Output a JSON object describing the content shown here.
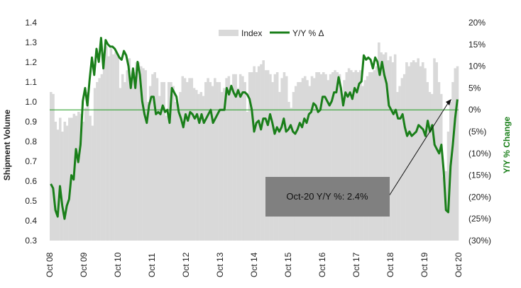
{
  "chart_data": {
    "type": "bar+line",
    "left_axis": {
      "label": "Shipment Volume",
      "ylim": [
        0.3,
        1.4
      ],
      "ticks": [
        "0.3",
        "0.4",
        "0.5",
        "0.6",
        "0.7",
        "0.8",
        "0.9",
        "1.0",
        "1.1",
        "1.2",
        "1.3",
        "1.4"
      ],
      "tick_values": [
        0.3,
        0.4,
        0.5,
        0.6,
        0.7,
        0.8,
        0.9,
        1.0,
        1.1,
        1.2,
        1.3,
        1.4
      ]
    },
    "right_axis": {
      "label": "Y/Y % Change",
      "ylim": [
        -30,
        20
      ],
      "ticks": [
        "20%",
        "15%",
        "10%",
        "5%",
        "0%",
        "(5%)",
        "(10%)",
        "(15%)",
        "(20%)",
        "(25%)",
        "(30%)"
      ],
      "tick_values": [
        20,
        15,
        10,
        5,
        0,
        -5,
        -10,
        -15,
        -20,
        -25,
        -30
      ],
      "color": "#1a7f1a"
    },
    "x_ticks": [
      "Oct 08",
      "Oct 09",
      "Oct 10",
      "Oct 11",
      "Oct 12",
      "Oct 13",
      "Oct 14",
      "Oct 15",
      "Oct 16",
      "Oct 17",
      "Oct 18",
      "Oct 19",
      "Oct 20"
    ],
    "legend": [
      {
        "name": "Index",
        "color": "#d9d9d9",
        "kind": "bar"
      },
      {
        "name": "Y/Y % Δ",
        "color": "#1a7f1a",
        "kind": "line"
      }
    ],
    "zero_line": {
      "value": 0,
      "color": "#1a9a1a"
    },
    "series": [
      {
        "name": "Index",
        "axis": "left",
        "values": [
          1.05,
          1.04,
          0.9,
          0.86,
          0.92,
          0.85,
          0.9,
          0.88,
          0.92,
          0.92,
          0.94,
          0.93,
          0.95,
          0.94,
          0.9,
          0.97,
          1.05,
          0.93,
          0.88,
          1.07,
          1.1,
          1.12,
          1.14,
          1.25,
          1.28,
          1.23,
          1.27,
          1.24,
          1.25,
          1.24,
          1.07,
          1.14,
          1.1,
          1.16,
          1.22,
          1.12,
          1.15,
          1.2,
          1.2,
          1.18,
          1.17,
          1.16,
          1.0,
          1.08,
          1.14,
          1.15,
          1.12,
          1.03,
          1.1,
          1.1,
          0.93,
          1.1,
          1.1,
          1.08,
          1.0,
          0.99,
          1.05,
          1.13,
          1.12,
          1.1,
          1.12,
          1.12,
          1.07,
          1.06,
          1.04,
          1.05,
          1.03,
          1.1,
          1.12,
          1.1,
          1.08,
          1.12,
          1.1,
          1.1,
          1.05,
          1.07,
          1.12,
          1.13,
          1.06,
          1.14,
          1.14,
          1.07,
          1.14,
          1.13,
          1.1,
          0.95,
          1.15,
          1.15,
          1.18,
          1.15,
          1.18,
          1.19,
          1.21,
          1.16,
          1.16,
          1.14,
          1.1,
          1.14,
          1.15,
          1.05,
          1.12,
          1.15,
          1.13,
          1.0,
          0.97,
          1.05,
          1.08,
          1.1,
          1.1,
          1.12,
          1.13,
          1.11,
          1.08,
          1.13,
          1.12,
          1.15,
          1.15,
          1.14,
          1.15,
          1.14,
          1.11,
          1.14,
          1.15,
          1.16,
          1.15,
          1.14,
          1.03,
          1.11,
          1.15,
          1.17,
          1.16,
          1.15,
          1.16,
          1.15,
          1.16,
          1.08,
          1.11,
          1.13,
          1.15,
          1.15,
          1.16,
          1.18,
          1.3,
          1.25,
          1.24,
          1.25,
          1.21,
          1.23,
          1.2,
          1.24,
          1.05,
          1.08,
          1.12,
          1.14,
          1.2,
          1.18,
          1.2,
          1.21,
          1.2,
          1.22,
          1.18,
          1.2,
          1.17,
          1.1,
          1.05,
          1.04,
          1.22,
          1.2,
          1.1,
          1.04,
          0.62,
          0.65,
          0.85,
          1.0,
          1.1,
          1.17,
          1.18
        ],
        "color": "#d9d9d9"
      },
      {
        "name": "Y/Y % Δ",
        "axis": "right",
        "values": [
          -17,
          -18,
          -23,
          -24.5,
          -17.5,
          -22,
          -25,
          -22,
          -20.5,
          -15,
          -16,
          -9,
          -12,
          -8,
          2,
          5,
          1,
          7,
          12,
          8,
          14,
          11,
          16.5,
          9.5,
          16,
          15,
          14.5,
          14.5,
          14,
          13,
          12,
          11.5,
          13.5,
          12.5,
          10,
          5,
          9.5,
          5,
          11,
          8,
          2,
          -1,
          -3,
          1,
          3,
          3,
          -1,
          -0.5,
          -1,
          1,
          -0.5,
          0,
          -3,
          5,
          4,
          3,
          -0.5,
          -2,
          -4,
          -1,
          -2.5,
          -0.5,
          -1,
          -2,
          -1,
          -3,
          -1,
          -3,
          -2,
          -1,
          0,
          -3,
          -2,
          -1,
          0,
          0,
          0,
          5,
          3.5,
          5.5,
          4,
          3,
          4.5,
          3,
          4,
          4,
          3.5,
          2.5,
          0,
          -5,
          -3,
          -2.5,
          -4.5,
          -2,
          -2,
          -3.5,
          -1,
          -3,
          -5.5,
          -4,
          -5,
          -4,
          -2,
          -5,
          -4.5,
          -3.5,
          -5,
          -5.5,
          -4.5,
          -3,
          -4,
          -2,
          -3,
          -1,
          -0.5,
          1.5,
          1,
          -0.5,
          0,
          3,
          3,
          2,
          1,
          2,
          4,
          4,
          7.5,
          5,
          1,
          4,
          3,
          4,
          2.5,
          5,
          4,
          6,
          6.5,
          12.5,
          11.5,
          12,
          11.5,
          9.5,
          12,
          11,
          8,
          11,
          8,
          6,
          1,
          0,
          -1,
          0,
          -2,
          -2,
          -1,
          -4,
          -6,
          -5,
          -6,
          -5.5,
          -5,
          -3.5,
          -4,
          -4.5,
          -6,
          -2.5,
          -5,
          -3.5,
          -8,
          -9,
          -10,
          -8,
          -14,
          -23,
          -23.5,
          -13,
          -8,
          -2,
          2.4
        ],
        "color": "#1a7f1a"
      }
    ],
    "annotation": {
      "text": "Oct-20 Y/Y %: 2.4%",
      "box_color": "#808080"
    }
  }
}
